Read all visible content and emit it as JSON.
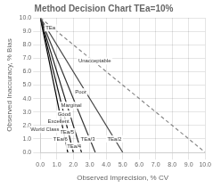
{
  "chart_data": {
    "type": "line",
    "title": "Method Decision Chart TEa=10%",
    "xlabel": "Observed Imprecision, % CV",
    "ylabel": "Observed Inaccuracy, % Bias",
    "xlim": [
      0.0,
      10.0
    ],
    "ylim": [
      0.0,
      10.0
    ],
    "xticks": [
      {
        "value": 0,
        "label": "0.0"
      },
      {
        "value": 1,
        "label": "1.0"
      },
      {
        "value": 2,
        "label": "2.0"
      },
      {
        "value": 3,
        "label": "3.0"
      },
      {
        "value": 4,
        "label": "4.0"
      },
      {
        "value": 5,
        "label": "5.0"
      },
      {
        "value": 6,
        "label": "6.0"
      },
      {
        "value": 7,
        "label": "7.0"
      },
      {
        "value": 8,
        "label": "8.0"
      },
      {
        "value": 9,
        "label": "9.0"
      },
      {
        "value": 10,
        "label": "10.0"
      }
    ],
    "yticks": [
      {
        "value": 0,
        "label": "0.0"
      },
      {
        "value": 1,
        "label": "1.0"
      },
      {
        "value": 2,
        "label": "2.0"
      },
      {
        "value": 3,
        "label": "3.0"
      },
      {
        "value": 4,
        "label": "4.0"
      },
      {
        "value": 5,
        "label": "5.0"
      },
      {
        "value": 6,
        "label": "6.0"
      },
      {
        "value": 7,
        "label": "7.0"
      },
      {
        "value": 8,
        "label": "8.0"
      },
      {
        "value": 9,
        "label": "9.0"
      },
      {
        "value": 10,
        "label": "10.0"
      }
    ],
    "grid": true,
    "series": [
      {
        "x": [
          0.0,
          10.0
        ],
        "values": [
          10.0,
          0.0
        ],
        "color": "#888888",
        "line_style": "dashed"
      },
      {
        "x": [
          0.0,
          5.0
        ],
        "values": [
          10.0,
          0.0
        ],
        "color": "#444444",
        "line_style": "solid"
      },
      {
        "x": [
          0.0,
          3.3333333333333335
        ],
        "values": [
          10.0,
          0.0
        ],
        "color": "#333333",
        "line_style": "solid"
      },
      {
        "x": [
          0.0,
          2.5
        ],
        "values": [
          10.0,
          0.0
        ],
        "color": "#222222",
        "line_style": "solid"
      },
      {
        "x": [
          0.0,
          2.0
        ],
        "values": [
          10.0,
          0.0
        ],
        "color": "#111111",
        "line_style": "solid"
      },
      {
        "x": [
          0.0,
          1.6666666666666667
        ],
        "values": [
          10.0,
          0.0
        ],
        "color": "#000000",
        "line_style": "solid"
      }
    ],
    "annotations": [
      {
        "text": "TEa",
        "x": 0.62,
        "y": 9.25
      },
      {
        "text": "TEa/6",
        "x": 1.22,
        "y": 1.0
      },
      {
        "text": "TEa/5",
        "x": 1.62,
        "y": 1.0
      },
      {
        "text": "TEa/4",
        "x": 2.05,
        "y": 1.0
      },
      {
        "text": "TEa/3",
        "x": 2.88,
        "y": 1.0
      },
      {
        "text": "TEa/2",
        "x": 4.5,
        "y": 1.0
      },
      {
        "text": "Unacceptable",
        "x": 3.3,
        "y": 6.8
      },
      {
        "text": "Poor",
        "x": 2.45,
        "y": 4.5
      },
      {
        "text": "Marginal",
        "x": 1.88,
        "y": 3.5
      },
      {
        "text": "Good",
        "x": 1.45,
        "y": 2.85
      },
      {
        "text": "Excellent",
        "x": 1.1,
        "y": 2.5
      },
      {
        "text": "World Class",
        "x": 0.28,
        "y": 1.7
      }
    ]
  }
}
